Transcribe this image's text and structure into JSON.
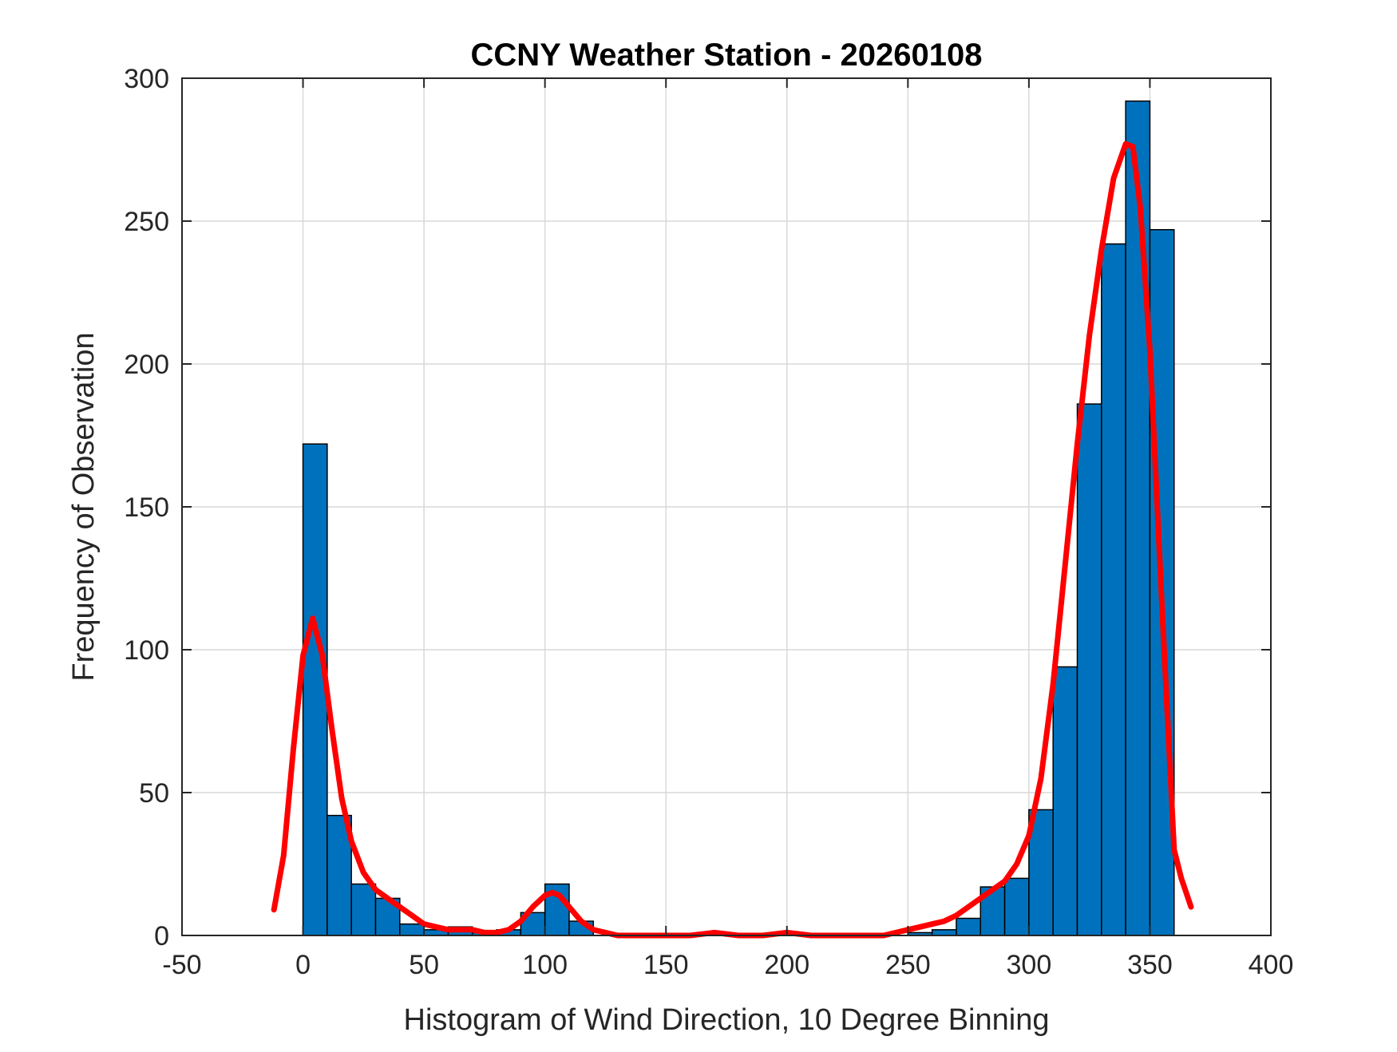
{
  "chart_data": {
    "type": "bar",
    "title": "CCNY Weather Station - 20260108",
    "xlabel": "Histogram of Wind Direction, 10 Degree Binning",
    "ylabel": "Frequency of Observation",
    "xlim": [
      -50,
      400
    ],
    "ylim": [
      0,
      300
    ],
    "xticks": [
      -50,
      0,
      50,
      100,
      150,
      200,
      250,
      300,
      350,
      400
    ],
    "xtick_labels": [
      "-50",
      "0",
      "50",
      "100",
      "150",
      "200",
      "250",
      "300",
      "350",
      "400"
    ],
    "yticks": [
      0,
      50,
      100,
      150,
      200,
      250,
      300
    ],
    "ytick_labels": [
      "0",
      "50",
      "100",
      "150",
      "200",
      "250",
      "300"
    ],
    "grid": true,
    "bin_width": 10,
    "bin_starts": [
      0,
      10,
      20,
      30,
      40,
      50,
      60,
      70,
      80,
      90,
      100,
      110,
      120,
      130,
      140,
      150,
      160,
      170,
      180,
      190,
      200,
      210,
      220,
      230,
      240,
      250,
      260,
      270,
      280,
      290,
      300,
      310,
      320,
      330,
      340,
      350
    ],
    "values": [
      172,
      42,
      18,
      13,
      4,
      2,
      3,
      1,
      2,
      8,
      18,
      5,
      0,
      0,
      0,
      0,
      0,
      0,
      0,
      0,
      0,
      0,
      0,
      0,
      0,
      1,
      2,
      6,
      17,
      20,
      44,
      94,
      186,
      242,
      292,
      247
    ],
    "bar_color": "#0072BD",
    "bar_edge_color": "#000000",
    "density_curve": {
      "color": "#FF0000",
      "x": [
        -12,
        -8,
        -4,
        0,
        4,
        8,
        12,
        16,
        20,
        25,
        30,
        35,
        40,
        45,
        50,
        55,
        60,
        65,
        70,
        75,
        80,
        85,
        90,
        95,
        100,
        103,
        106,
        110,
        115,
        120,
        125,
        130,
        140,
        150,
        160,
        170,
        180,
        190,
        200,
        210,
        220,
        230,
        240,
        245,
        250,
        255,
        260,
        265,
        270,
        275,
        280,
        285,
        290,
        295,
        300,
        305,
        310,
        315,
        320,
        325,
        330,
        335,
        340,
        343,
        346,
        350,
        355,
        360,
        363,
        367
      ],
      "y": [
        9,
        28,
        65,
        98,
        111,
        98,
        72,
        48,
        33,
        22,
        16,
        13,
        10,
        7,
        4,
        3,
        2,
        2,
        2,
        1,
        1,
        2,
        5,
        10,
        14,
        15,
        14,
        10,
        5,
        2,
        1,
        0,
        0,
        0,
        0,
        1,
        0,
        0,
        1,
        0,
        0,
        0,
        0,
        1,
        2,
        3,
        4,
        5,
        7,
        10,
        13,
        16,
        19,
        25,
        35,
        55,
        88,
        130,
        172,
        210,
        240,
        265,
        277,
        276,
        255,
        205,
        115,
        30,
        20,
        10
      ]
    }
  }
}
